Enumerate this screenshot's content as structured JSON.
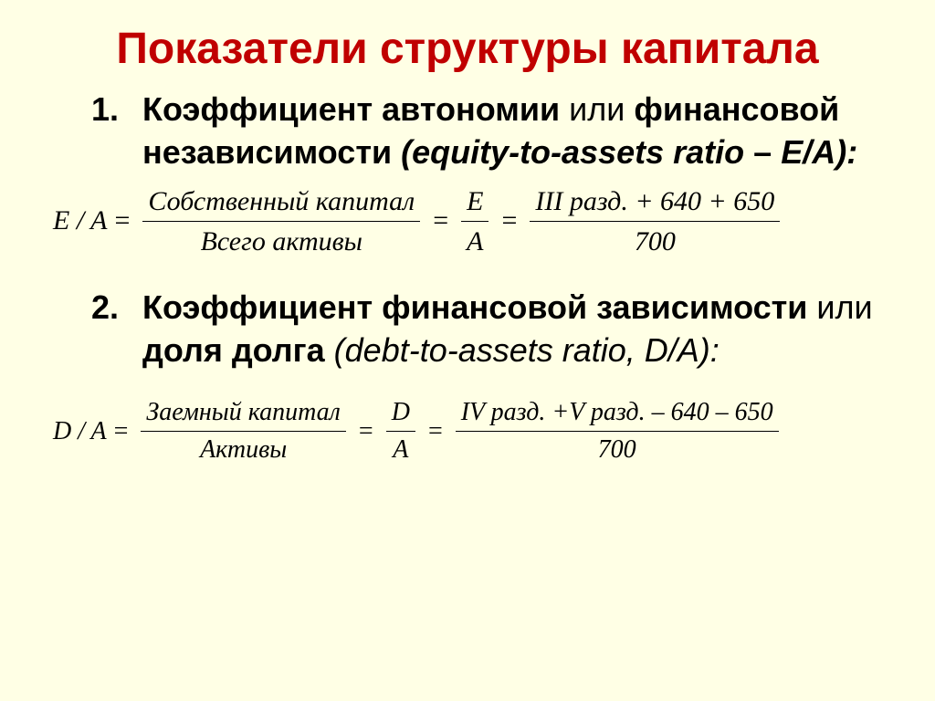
{
  "colors": {
    "background": "#ffffe5",
    "title": "#c00000",
    "text": "#000000"
  },
  "fonts": {
    "body": "Arial",
    "math": "Times New Roman"
  },
  "title": "Показатели структуры капитала",
  "item1": {
    "num": "1.",
    "bold1": "Коэффициент автономии",
    "plain1": "  или ",
    "bold2": "финансовой независимости ",
    "italic": "(equity-to-assets ratio ",
    "bold3": "– ",
    "italic2": "E/A):"
  },
  "formula1": {
    "lhs": "E / A",
    "eq": "=",
    "f1_top": "Собственный капитал",
    "f1_bot": "Всего активы",
    "f2_top": "E",
    "f2_bot": "A",
    "f3_top": "III  разд. + 640 + 650",
    "f3_bot": "700"
  },
  "item2": {
    "num": "2.",
    "bold1": "Коэффициент финансовой зависимости ",
    "plain1": "или ",
    "bold2": "доля долга  ",
    "italic": "(debt-to-assets ratio, D/A):"
  },
  "formula2": {
    "lhs": "D / A",
    "eq": "=",
    "f1_top": "Заемный капитал",
    "f1_bot": "Активы",
    "f2_top": "D",
    "f2_bot": "A",
    "f3_top": "IV  разд. +V  разд. – 640 – 650",
    "f3_bot": "700"
  }
}
